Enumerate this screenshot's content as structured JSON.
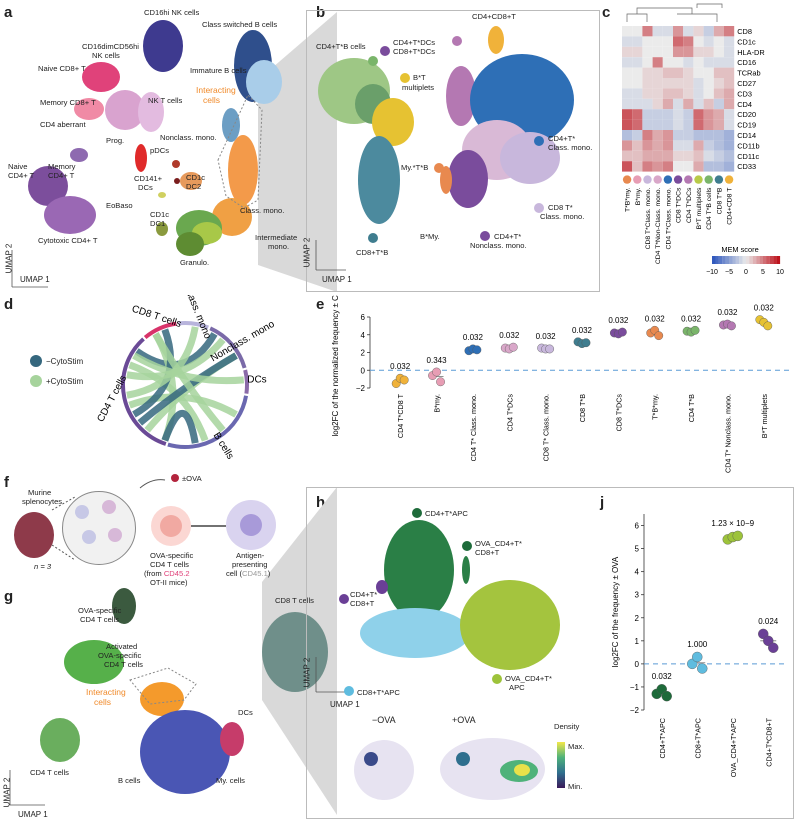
{
  "panels": {
    "a": "a",
    "b": "b",
    "c": "c",
    "d": "d",
    "e": "e",
    "f": "f",
    "g": "g",
    "h": "h",
    "i": "i",
    "j": "j"
  },
  "umap": {
    "x": "UMAP 1",
    "y": "UMAP 2"
  },
  "panel_a": {
    "nk16": "CD16hi NK cells",
    "nk56": "CD16dimCD56hi",
    "nk56b": "NK cells",
    "naive8": "Naive CD8+ T",
    "mem8": "Memory CD8+ T",
    "nkt": "NK T cells",
    "cd4ab": "CD4 aberrant",
    "naive4a": "Naive",
    "naive4b": "CD4+ T",
    "mem4a": "Memory",
    "mem4b": "CD4+ T",
    "cyto4": "Cytotoxic CD4+ T",
    "classb": "Class switched B cells",
    "immb": "Immature B cells",
    "inter1": "Interacting",
    "inter2": "cells",
    "nonclass": "Nonclass. mono.",
    "prog": "Prog.",
    "pdc": "pDCs",
    "cd1cdc2a": "CD1c",
    "cd1cdc2b": "DC2",
    "cd141a": "CD141+",
    "cd141b": "DCs",
    "classm": "Class. mono.",
    "eobaso": "EoBaso",
    "cd1cdc1a": "CD1c",
    "cd1cdc1b": "DC1",
    "granulo": "Granulo.",
    "inter_m1": "Intermediate",
    "inter_m2": "mono."
  },
  "panel_b": {
    "cd4cd8": "CD4+CD8+T",
    "cd4b": "CD4+T*B cells",
    "bt1": "B*T",
    "bt2": "multiplets",
    "cd4dc": "CD4+T*DCs",
    "cd8dc": "CD8+T*DCs",
    "cd4cm1": "CD4+T*",
    "cd4cm2": "Class. mono.",
    "mytb": "My.*T*B",
    "bmy": "B*My.",
    "cd8cm1": "CD8 T*",
    "cd8cm2": "Class. mono.",
    "cd4nc1": "CD4+T*",
    "cd4nc2": "Nonclass. mono.",
    "cd8tb": "CD8+T*B"
  },
  "panel_c": {
    "rows": [
      "CD8",
      "CD1c",
      "HLA-DR",
      "CD16",
      "TCRab",
      "CD27",
      "CD3",
      "CD4",
      "CD20",
      "CD19",
      "CD14",
      "CD11b",
      "CD11c",
      "CD33"
    ],
    "cols": [
      "T*B*my.",
      "B*my.",
      "CD8 T*Class. mono.",
      "CD4 T*Non-Class. mono.",
      "CD4 T*Class. mono.",
      "CD8 T*DCs",
      "CD4 T*DCs",
      "B*T multiplets",
      "CD4 T*B cells",
      "CD8 T*B",
      "CD4+CD8 T"
    ],
    "col_colors": [
      "#e8894f",
      "#e79db4",
      "#c8b7dc",
      "#d9a7c9",
      "#2e6fb6",
      "#7a4c9c",
      "#b478b2",
      "#b8ca48",
      "#7ab56a",
      "#3f7d8f",
      "#f0b23a"
    ],
    "legend_title": "MEM score",
    "legend_ticks": [
      "−10",
      "−5",
      "0",
      "5",
      "10"
    ],
    "values": [
      [
        0,
        0,
        5,
        -1,
        -1,
        4,
        -1,
        1,
        -2,
        3,
        5
      ],
      [
        -1,
        -1,
        0,
        0,
        0,
        6,
        5,
        0,
        -1,
        0,
        -1
      ],
      [
        1,
        1,
        0,
        0,
        0,
        4,
        4,
        1,
        1,
        0,
        -1
      ],
      [
        -1,
        -1,
        0,
        5,
        0,
        0,
        -1,
        0,
        -1,
        -1,
        -1
      ],
      [
        0,
        0,
        1,
        1,
        2,
        2,
        1,
        0,
        0,
        2,
        2
      ],
      [
        0,
        0,
        1,
        1,
        1,
        1,
        1,
        -1,
        0,
        1,
        2
      ],
      [
        -1,
        -1,
        1,
        1,
        2,
        2,
        1,
        -1,
        0,
        2,
        3
      ],
      [
        -1,
        -1,
        -1,
        1,
        3,
        -1,
        3,
        -1,
        2,
        -2,
        3
      ],
      [
        7,
        6,
        -2,
        -2,
        -2,
        -1,
        -2,
        6,
        4,
        3,
        -1
      ],
      [
        7,
        6,
        -2,
        -2,
        -2,
        -1,
        -2,
        6,
        4,
        3,
        -1
      ],
      [
        -3,
        -2,
        5,
        3,
        4,
        -2,
        -2,
        -3,
        -3,
        -3,
        -4
      ],
      [
        4,
        2,
        4,
        3,
        4,
        -1,
        -1,
        3,
        -2,
        -3,
        -4
      ],
      [
        2,
        2,
        3,
        3,
        3,
        1,
        1,
        2,
        -1,
        -2,
        -3
      ],
      [
        7,
        2,
        5,
        4,
        5,
        0,
        0,
        3,
        -3,
        -3,
        -4
      ]
    ]
  },
  "panel_d": {
    "legend": [
      {
        "label": "−CytoStim",
        "color": "#35677e"
      },
      {
        "label": "+CytoStim",
        "color": "#a6d39c"
      }
    ],
    "arcs": [
      "CD4 T cells",
      "CD8 T cells",
      "Class. mono",
      "Nonclass. mono",
      "DCs",
      "B cells"
    ]
  },
  "chart_data": {
    "type": "scatter",
    "ylabel": "log2FC of the normalized frequency ± CytoStim",
    "ylim": [
      -2,
      6
    ],
    "yticks": [
      "−2",
      "0",
      "2",
      "4",
      "6"
    ],
    "categories": [
      "CD4 T*CD8 T",
      "B*my.",
      "CD4 T* Class. mono.",
      "CD4 T*DCs",
      "CD8 T* Class. mono.",
      "CD8 T*B",
      "CD8 T*DCs",
      "T*B*my.",
      "CD4 T*B",
      "CD4 T* Nonclass. mono.",
      "B*T multiplets"
    ],
    "pvalues": [
      "0.032",
      "0.343",
      "0.032",
      "0.032",
      "0.032",
      "0.032",
      "0.032",
      "0.032",
      "0.032",
      "0.032",
      "0.032"
    ],
    "colors": [
      "#f0b23a",
      "#e79db4",
      "#2e6fb6",
      "#d9a7c9",
      "#c8b7dc",
      "#3f7d8f",
      "#7a4c9c",
      "#e8894f",
      "#7ab56a",
      "#b478b2",
      "#e6c232"
    ],
    "points": [
      [
        -1.5,
        -0.9,
        -1.1
      ],
      [
        -0.6,
        -0.2,
        -1.3
      ],
      [
        2.2,
        2.4,
        2.3
      ],
      [
        2.5,
        2.4,
        2.6
      ],
      [
        2.5,
        2.4,
        2.4
      ],
      [
        3.2,
        3.0,
        3.1
      ],
      [
        4.2,
        4.1,
        4.3
      ],
      [
        4.2,
        4.5,
        3.9
      ],
      [
        4.4,
        4.3,
        4.5
      ],
      [
        5.1,
        5.2,
        5.0
      ],
      [
        5.7,
        5.4,
        5.0
      ]
    ],
    "means": [
      -1.2,
      -0.7,
      2.3,
      2.5,
      2.4,
      3.1,
      4.2,
      4.2,
      4.4,
      5.1,
      5.4
    ]
  },
  "panel_f": {
    "mur1": "Murine",
    "mur2": "splenocytes",
    "n": "n = 3",
    "ova": "±OVA",
    "spec1": "OVA-specific",
    "spec2": "CD4 T cells",
    "spec3a": "(from ",
    "spec3b": "CD45.2",
    "spec4": "OT-II mice)",
    "apc1": "Antigen-",
    "apc2": "presenting",
    "apc3a": "cell (",
    "apc3b": "CD45.1",
    "apc3c": ")"
  },
  "panel_g": {
    "ovaspec1": "OVA-specific",
    "ovaspec2": "CD4 T cells",
    "act1": "Activated",
    "act2": "OVA-specific",
    "act3": "CD4 T cells",
    "inter1": "Interacting",
    "inter2": "cells",
    "cd8": "CD8 T cells",
    "cd4": "CD4 T cells",
    "dcs": "DCs",
    "bcells": "B cells",
    "my": "My. cells"
  },
  "panel_h": {
    "cd4apc": "CD4+T*APC",
    "ova1": "OVA_CD4+T*",
    "ova2": "CD8+T",
    "cd4cd8a": "CD4+T*",
    "cd4cd8b": "CD8+T",
    "cd8apc": "CD8+T*APC",
    "ovaapc1": "OVA_CD4+T*",
    "ovaapc2": "APC"
  },
  "panel_i": {
    "minus": "−OVA",
    "plus": "+OVA",
    "dens": "Density",
    "max": "Max.",
    "min": "Min."
  },
  "chart_data_j": {
    "type": "scatter",
    "ylabel": "log2FC of the frequency ± OVA",
    "ylim": [
      -2,
      6.5
    ],
    "yticks": [
      "−2",
      "−1",
      "0",
      "1",
      "2",
      "3",
      "4",
      "5",
      "6"
    ],
    "categories": [
      "CD4+T*APC",
      "CD8+T*APC",
      "OVA_CD4+T*APC",
      "CD4+T*CD8+T"
    ],
    "pvalues": [
      "0.032",
      "1.000",
      "1.23 × 10−9",
      "0.024"
    ],
    "colors": [
      "#1e6b3a",
      "#5fbcdf",
      "#9dc33a",
      "#6a3f96"
    ],
    "points": [
      [
        -1.3,
        -1.1,
        -1.4
      ],
      [
        0.0,
        0.3,
        -0.2
      ],
      [
        5.4,
        5.5,
        5.55
      ],
      [
        1.3,
        1.0,
        0.7
      ]
    ],
    "means": [
      -1.25,
      0.05,
      5.5,
      1.0
    ]
  }
}
